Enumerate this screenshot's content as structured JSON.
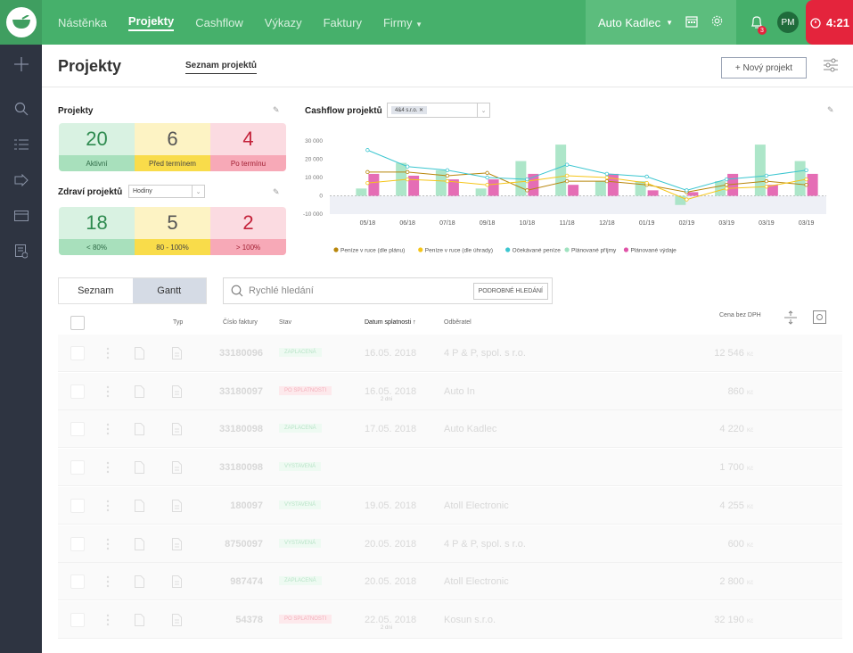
{
  "topbar": {
    "nav": [
      "Nástěnka",
      "Projekty",
      "Cashflow",
      "Výkazy",
      "Faktury",
      "Firmy"
    ],
    "active_nav": "Projekty",
    "company": "Auto Kadlec",
    "notifications": "3",
    "avatar": "PM",
    "timer": "4:21"
  },
  "header": {
    "title": "Projekty",
    "subtab": "Seznam projektů",
    "new_button": "+ Nový projekt"
  },
  "projects_widget": {
    "title": "Projekty",
    "tiles": [
      {
        "value": "20",
        "label": "Aktivní"
      },
      {
        "value": "6",
        "label": "Před termínem"
      },
      {
        "value": "4",
        "label": "Po termínu"
      }
    ]
  },
  "health_widget": {
    "title": "Zdraví projektů",
    "select": "Hodiny",
    "tiles": [
      {
        "value": "18",
        "label": "< 80%"
      },
      {
        "value": "5",
        "label": "80 - 100%"
      },
      {
        "value": "2",
        "label": "> 100%"
      }
    ]
  },
  "cashflow_widget": {
    "title": "Cashflow projektů",
    "chip": "4&4 s.r.o."
  },
  "chart_data": {
    "type": "bar",
    "categories": [
      "05/18",
      "06/18",
      "07/18",
      "09/18",
      "10/18",
      "11/18",
      "12/18",
      "01/19",
      "02/19",
      "03/19",
      "03/19",
      "03/19"
    ],
    "yticks": [
      "30 000",
      "20 000",
      "10 000",
      "0",
      "-10 000"
    ],
    "ylim": [
      -10000,
      30000
    ],
    "legend_position": "bottom",
    "series": [
      {
        "name": "Peníze v ruce (dle plánu)",
        "type": "line",
        "color": "#b8860b",
        "values": [
          13000,
          13000,
          11000,
          12500,
          3000,
          8000,
          8000,
          6000,
          2000,
          6000,
          8000,
          6000
        ]
      },
      {
        "name": "Peníze v ruce (dle úhrady)",
        "type": "line",
        "color": "#f5c518",
        "values": [
          7000,
          9000,
          8000,
          6000,
          8000,
          11000,
          10000,
          7000,
          -2000,
          4000,
          5000,
          9000
        ]
      },
      {
        "name": "Očekávané peníze",
        "type": "line",
        "color": "#3cc6d0",
        "values": [
          25000,
          16000,
          14000,
          10000,
          9000,
          17000,
          12000,
          10500,
          3000,
          9000,
          11000,
          14000
        ]
      },
      {
        "name": "Plánované příjmy",
        "type": "bar",
        "color": "#9fe2bf",
        "values": [
          4000,
          18000,
          14000,
          4000,
          19000,
          28000,
          8000,
          8000,
          -5000,
          8000,
          28000,
          19000
        ]
      },
      {
        "name": "Plánované výdaje",
        "type": "bar",
        "color": "#e054a8",
        "values": [
          12000,
          11000,
          9000,
          9000,
          12000,
          6000,
          12000,
          3000,
          2000,
          12000,
          6000,
          12000
        ]
      }
    ]
  },
  "list": {
    "toggle": [
      "Seznam",
      "Gantt"
    ],
    "active_view": "Gantt",
    "search_placeholder": "Rychlé hledání",
    "advanced_search": "PODROBNÉ HLEDÁNÍ",
    "columns": {
      "type": "Typ",
      "invoice": "Číslo faktury",
      "state": "Stav",
      "due": "Datum splatnosti ↑",
      "customer": "Odběratel",
      "price": "Cena bez DPH"
    },
    "rows": [
      {
        "invoice": "33180096",
        "state": "ZAPLACENÁ",
        "state_kind": "green",
        "due": "16.05. 2018",
        "customer": "4 P & P, spol. s r.o.",
        "price": "12 546",
        "currency": "Kč"
      },
      {
        "invoice": "33180097",
        "state": "PO SPLATNOSTI",
        "state_kind": "red",
        "due": "16.05. 2018",
        "due_sub": "2 dni",
        "customer": "Auto In",
        "price": "860",
        "currency": "Kč"
      },
      {
        "invoice": "33180098",
        "state": "ZAPLACENÁ",
        "state_kind": "green",
        "due": "17.05. 2018",
        "customer": "Auto Kadlec",
        "price": "4 220",
        "currency": "Kč"
      },
      {
        "invoice": "33180098",
        "state": "VYSTAVENÁ",
        "state_kind": "green2",
        "due": "",
        "customer": "",
        "price": "1 700",
        "currency": "Kč"
      },
      {
        "invoice": "180097",
        "state": "VYSTAVENÁ",
        "state_kind": "green2",
        "due": "19.05. 2018",
        "customer": "Atoll Electronic",
        "price": "4 255",
        "currency": "Kč"
      },
      {
        "invoice": "8750097",
        "state": "VYSTAVENÁ",
        "state_kind": "green2",
        "due": "20.05. 2018",
        "customer": "4 P & P, spol. s r.o.",
        "price": "600",
        "currency": "Kč"
      },
      {
        "invoice": "987474",
        "state": "ZAPLACENÁ",
        "state_kind": "green",
        "due": "20.05. 2018",
        "customer": "Atoll Electronic",
        "price": "2 800",
        "currency": "Kč"
      },
      {
        "invoice": "54378",
        "state": "PO SPLATNOSTI",
        "state_kind": "red",
        "due": "22.05. 2018",
        "due_sub": "2 dni",
        "customer": "Kosun s.r.o.",
        "price": "32 190",
        "currency": "Kč"
      }
    ]
  }
}
